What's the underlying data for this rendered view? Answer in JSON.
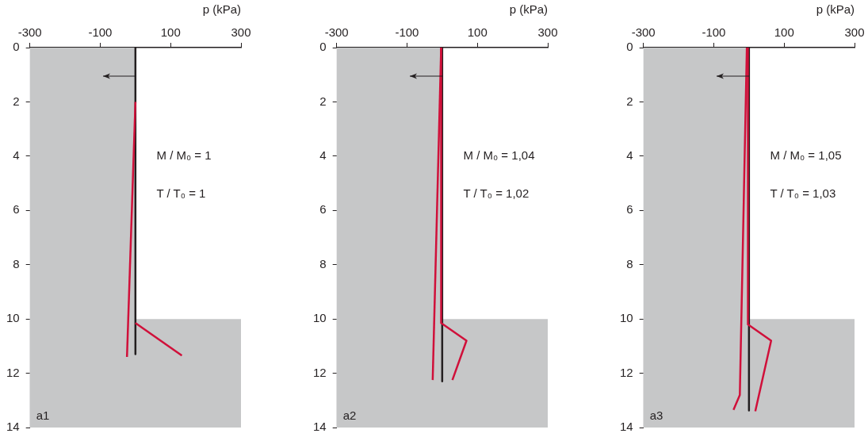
{
  "chart_data": [
    {
      "type": "line",
      "xlabel": "p (kPa)",
      "xlim": [
        -300,
        300
      ],
      "xticks": [
        -300,
        -100,
        100,
        300
      ],
      "ylim": [
        14,
        0
      ],
      "yticks": [
        0,
        2,
        4,
        6,
        8,
        10,
        12,
        14
      ],
      "grid": false,
      "legend": false,
      "marker": "none",
      "line_style": "solid",
      "bands": [
        {
          "axis": "x",
          "from": -300,
          "to": 0,
          "color": "#c6c7c8"
        },
        {
          "axis": "y",
          "from": 10,
          "to": 14,
          "color": "#c6c7c8"
        }
      ],
      "annotations": [
        "M / M₀ = 1",
        "T / T₀ = 1",
        "a1"
      ],
      "series": [
        {
          "color": "#d0103a",
          "x": [
            0,
            -24
          ],
          "values": [
            2,
            11.4
          ]
        },
        {
          "color": "#d0103a",
          "x": [
            0,
            132
          ],
          "values": [
            10.15,
            11.35
          ]
        },
        {
          "color": "#231f20",
          "x": [
            0,
            0
          ],
          "values": [
            0,
            11.3
          ]
        }
      ]
    },
    {
      "type": "line",
      "xlabel": "p (kPa)",
      "xlim": [
        -300,
        300
      ],
      "xticks": [
        -300,
        -100,
        100,
        300
      ],
      "ylim": [
        14,
        0
      ],
      "yticks": [
        0,
        2,
        4,
        6,
        8,
        10,
        12,
        14
      ],
      "grid": false,
      "legend": false,
      "marker": "none",
      "line_style": "solid",
      "bands": [
        {
          "axis": "x",
          "from": -300,
          "to": 0,
          "color": "#c6c7c8"
        },
        {
          "axis": "y",
          "from": 10,
          "to": 14,
          "color": "#c6c7c8"
        }
      ],
      "annotations": [
        "M / M₀ = 1,04",
        "T / T₀ = 1,02",
        "a2"
      ],
      "series": [
        {
          "color": "#d0103a",
          "x": [
            -3,
            -27
          ],
          "values": [
            0,
            12.25
          ]
        },
        {
          "color": "#d0103a",
          "x": [
            -3,
            -3,
            69,
            29
          ],
          "values": [
            0,
            10.15,
            10.8,
            12.25
          ]
        },
        {
          "color": "#231f20",
          "x": [
            0,
            0
          ],
          "values": [
            0,
            12.3
          ]
        }
      ]
    },
    {
      "type": "line",
      "xlabel": "p (kPa)",
      "xlim": [
        -300,
        300
      ],
      "xticks": [
        -300,
        -100,
        100,
        300
      ],
      "ylim": [
        14,
        0
      ],
      "yticks": [
        0,
        2,
        4,
        6,
        8,
        10,
        12,
        14
      ],
      "grid": false,
      "legend": false,
      "marker": "none",
      "line_style": "solid",
      "bands": [
        {
          "axis": "x",
          "from": -300,
          "to": 0,
          "color": "#c6c7c8"
        },
        {
          "axis": "y",
          "from": 10,
          "to": 14,
          "color": "#c6c7c8"
        }
      ],
      "annotations": [
        "M / M₀ = 1,05",
        "T / T₀ = 1,03",
        "a3"
      ],
      "series": [
        {
          "color": "#d0103a",
          "x": [
            -6,
            -26,
            -44
          ],
          "values": [
            0,
            12.8,
            13.35
          ]
        },
        {
          "color": "#d0103a",
          "x": [
            -3,
            -3,
            63,
            18
          ],
          "values": [
            0,
            10.2,
            10.8,
            13.4
          ]
        },
        {
          "color": "#231f20",
          "x": [
            0,
            0
          ],
          "values": [
            0,
            13.37
          ]
        }
      ]
    }
  ]
}
